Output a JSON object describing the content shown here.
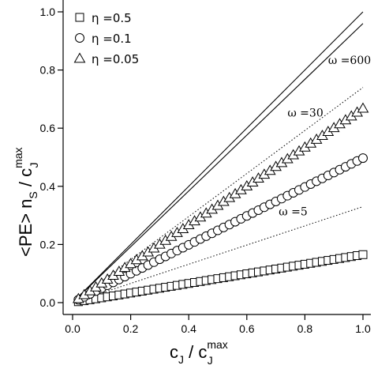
{
  "chart_data": {
    "type": "scatter",
    "xlabel": {
      "main": "c",
      "sub": "J",
      "sep": " / c",
      "sub2": "J",
      "sup2": "max"
    },
    "ylabel": {
      "main": "<PE> n",
      "sub": "S",
      "sep": " / c",
      "sub2": "J",
      "sup2": "max"
    },
    "xlim": [
      0.0,
      1.0
    ],
    "ylim": [
      0.0,
      1.0
    ],
    "xticks": [
      "0.0",
      "0.2",
      "0.4",
      "0.6",
      "0.8",
      "1.0"
    ],
    "yticks": [
      "0.0",
      "0.2",
      "0.4",
      "0.6",
      "0.8",
      "1.0"
    ],
    "grid": false,
    "legend_position": "top-left",
    "series": [
      {
        "name": "η =0.5",
        "marker": "square",
        "slope": 0.165
      },
      {
        "name": "η =0.1",
        "marker": "circle",
        "slope": 0.497
      },
      {
        "name": "η =0.05",
        "marker": "triangle",
        "slope": 0.668
      }
    ],
    "x": [
      0.02,
      0.04,
      0.06,
      0.08,
      0.1,
      0.12,
      0.14,
      0.16,
      0.18,
      0.2,
      0.22,
      0.24,
      0.26,
      0.28,
      0.3,
      0.32,
      0.34,
      0.36,
      0.38,
      0.4,
      0.42,
      0.44,
      0.46,
      0.48,
      0.5,
      0.52,
      0.54,
      0.56,
      0.58,
      0.6,
      0.62,
      0.64,
      0.66,
      0.68,
      0.7,
      0.72,
      0.74,
      0.76,
      0.78,
      0.8,
      0.82,
      0.84,
      0.86,
      0.88,
      0.9,
      0.92,
      0.94,
      0.96,
      0.98,
      1.0
    ],
    "reference_lines": [
      {
        "label": "ω =600",
        "slope": 0.96,
        "style": "solid"
      },
      {
        "label": "ω =30",
        "slope": 0.74,
        "style": "dotted"
      },
      {
        "label": "ω =5",
        "slope": 0.33,
        "style": "dotted"
      }
    ],
    "diagonal": {
      "slope": 1.0,
      "style": "solid"
    }
  }
}
